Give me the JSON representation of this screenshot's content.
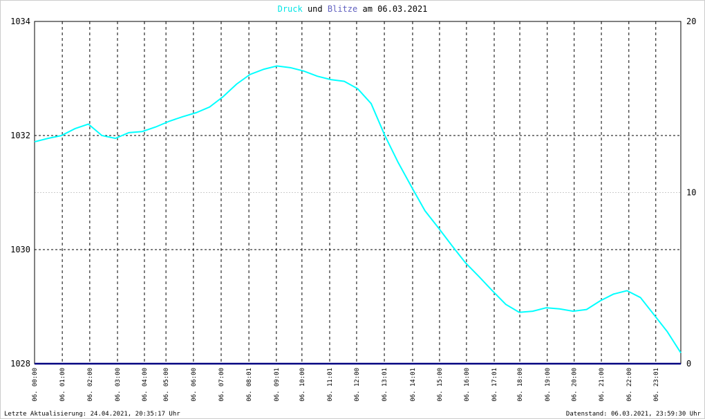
{
  "chart_data": {
    "type": "line",
    "title_connector": "und",
    "title_suffix": "am 06.03.2021",
    "x": [
      0,
      0.5,
      1,
      1.5,
      2,
      2.5,
      3,
      3.5,
      4,
      4.5,
      5,
      5.5,
      6,
      6.5,
      7,
      7.5,
      8,
      8.5,
      9,
      9.5,
      10,
      10.5,
      11,
      11.5,
      12,
      12.5,
      13,
      13.5,
      14,
      14.5,
      15,
      15.5,
      16,
      16.5,
      17,
      17.5,
      18,
      18.5,
      19,
      19.5,
      20,
      20.5,
      21,
      21.5,
      22,
      22.5,
      23,
      23.5,
      24
    ],
    "series": [
      {
        "name": "Druck",
        "color": "#00ffff",
        "values": [
          1031.89,
          1031.95,
          1032.0,
          1032.12,
          1032.2,
          1032.0,
          1031.95,
          1032.05,
          1032.07,
          1032.15,
          1032.25,
          1032.33,
          1032.4,
          1032.5,
          1032.68,
          1032.9,
          1033.07,
          1033.16,
          1033.22,
          1033.19,
          1033.13,
          1033.04,
          1032.98,
          1032.95,
          1032.82,
          1032.56,
          1032.01,
          1031.53,
          1031.1,
          1030.68,
          1030.38,
          1030.07,
          1029.77,
          1029.53,
          1029.28,
          1029.04,
          1028.9,
          1028.92,
          1028.98,
          1028.96,
          1028.92,
          1028.95,
          1029.1,
          1029.22,
          1029.28,
          1029.16,
          1028.86,
          1028.56,
          1028.19
        ]
      },
      {
        "name": "Blitze",
        "color": "#6060c0",
        "line_color": "#000080",
        "axis": "y2",
        "values": [
          0,
          0,
          0,
          0,
          0,
          0,
          0,
          0,
          0,
          0,
          0,
          0,
          0,
          0,
          0,
          0,
          0,
          0,
          0,
          0,
          0,
          0,
          0,
          0,
          0,
          0,
          0,
          0,
          0,
          0,
          0,
          0,
          0,
          0,
          0,
          0,
          0,
          0,
          0,
          0,
          0,
          0,
          0,
          0,
          0,
          0,
          0,
          0,
          0
        ]
      }
    ],
    "xlim": [
      0,
      24
    ],
    "xticks": [
      {
        "value": 0,
        "label": "06. 00:00"
      },
      {
        "value": 1.03,
        "label": "06. 01:00"
      },
      {
        "value": 2.05,
        "label": "06. 02:00"
      },
      {
        "value": 3.08,
        "label": "06. 03:00"
      },
      {
        "value": 4.08,
        "label": "06. 04:00"
      },
      {
        "value": 4.88,
        "label": "06. 05:00"
      },
      {
        "value": 5.9,
        "label": "06. 06:00"
      },
      {
        "value": 6.93,
        "label": "06. 07:00"
      },
      {
        "value": 7.96,
        "label": "06. 08:01"
      },
      {
        "value": 8.98,
        "label": "06. 09:01"
      },
      {
        "value": 9.93,
        "label": "06. 10:00"
      },
      {
        "value": 10.96,
        "label": "06. 11:01"
      },
      {
        "value": 11.96,
        "label": "06. 12:00"
      },
      {
        "value": 12.99,
        "label": "06. 13:01"
      },
      {
        "value": 14.04,
        "label": "06. 14:01"
      },
      {
        "value": 15.04,
        "label": "06. 15:00"
      },
      {
        "value": 16.04,
        "label": "06. 16:00"
      },
      {
        "value": 17.07,
        "label": "06. 17:01"
      },
      {
        "value": 18.02,
        "label": "06. 18:00"
      },
      {
        "value": 19.04,
        "label": "06. 19:00"
      },
      {
        "value": 20.04,
        "label": "06. 20:00"
      },
      {
        "value": 21.05,
        "label": "06. 21:00"
      },
      {
        "value": 22.07,
        "label": "06. 22:00"
      },
      {
        "value": 23.07,
        "label": "06. 23:01"
      }
    ],
    "ylim": [
      1028,
      1034
    ],
    "yticks": [
      1028,
      1030,
      1032,
      1034
    ],
    "y2lim": [
      0,
      20
    ],
    "y2ticks": [
      0,
      10,
      20
    ],
    "grid": true,
    "footer_left": "Letzte Aktualisierung: 24.04.2021, 20:35:17 Uhr",
    "footer_right": "Datenstand: 06.03.2021, 23:59:30 Uhr"
  }
}
